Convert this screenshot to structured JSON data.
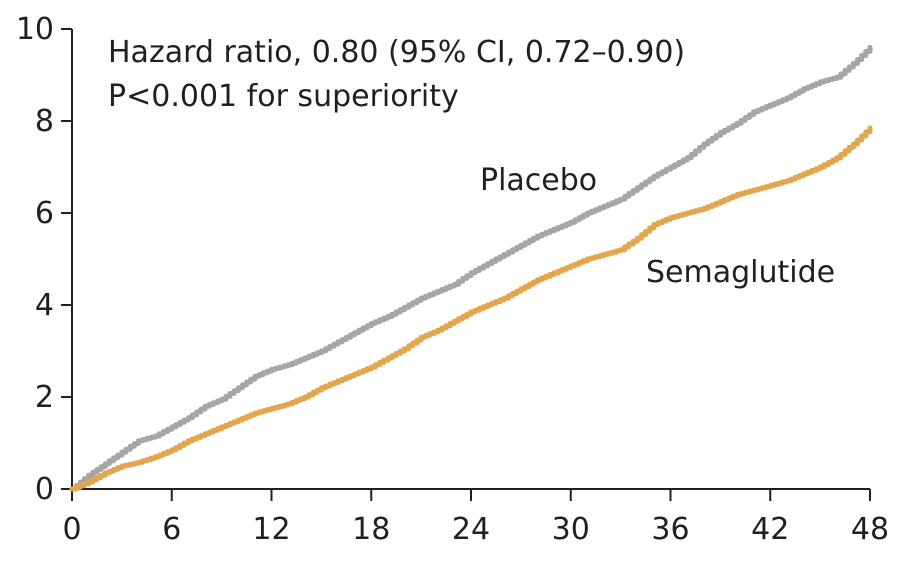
{
  "chart_data": {
    "type": "line",
    "title": "",
    "xlabel": "",
    "ylabel": "",
    "xlim": [
      0,
      48
    ],
    "ylim": [
      0,
      10
    ],
    "xticks": [
      0,
      6,
      12,
      18,
      24,
      30,
      36,
      42,
      48
    ],
    "yticks": [
      0,
      2,
      4,
      6,
      8,
      10
    ],
    "grid": false,
    "legend": "inline labels",
    "annotations": {
      "line1": "Hazard ratio, 0.80 (95% CI, 0.72–0.90)",
      "line2": "P<0.001 for superiority"
    },
    "series": [
      {
        "name": "Placebo",
        "color": "#a7a5a8",
        "x": [
          0,
          1,
          2,
          3,
          4,
          5,
          6,
          7,
          8,
          9,
          10,
          11,
          12,
          13,
          14,
          15,
          16,
          17,
          18,
          19,
          20,
          21,
          22,
          23,
          24,
          25,
          26,
          27,
          28,
          29,
          30,
          31,
          32,
          33,
          34,
          35,
          36,
          37,
          38,
          39,
          40,
          41,
          42,
          43,
          44,
          45,
          46,
          47,
          48
        ],
        "values": [
          0,
          0.3,
          0.55,
          0.8,
          1.05,
          1.15,
          1.35,
          1.55,
          1.8,
          1.95,
          2.2,
          2.45,
          2.6,
          2.7,
          2.85,
          3.0,
          3.2,
          3.4,
          3.6,
          3.75,
          3.95,
          4.15,
          4.3,
          4.45,
          4.7,
          4.9,
          5.1,
          5.3,
          5.5,
          5.65,
          5.8,
          6.0,
          6.15,
          6.3,
          6.55,
          6.8,
          7.0,
          7.2,
          7.5,
          7.75,
          7.95,
          8.2,
          8.35,
          8.5,
          8.7,
          8.85,
          8.95,
          9.25,
          9.6
        ]
      },
      {
        "name": "Semaglutide",
        "color": "#e3a64e",
        "x": [
          0,
          1,
          2,
          3,
          4,
          5,
          6,
          7,
          8,
          9,
          10,
          11,
          12,
          13,
          14,
          15,
          16,
          17,
          18,
          19,
          20,
          21,
          22,
          23,
          24,
          25,
          26,
          27,
          28,
          29,
          30,
          31,
          32,
          33,
          34,
          35,
          36,
          37,
          38,
          39,
          40,
          41,
          42,
          43,
          44,
          45,
          46,
          47,
          48
        ],
        "values": [
          0,
          0.15,
          0.35,
          0.5,
          0.58,
          0.7,
          0.85,
          1.05,
          1.2,
          1.35,
          1.5,
          1.65,
          1.75,
          1.85,
          2.0,
          2.2,
          2.35,
          2.5,
          2.65,
          2.85,
          3.05,
          3.3,
          3.45,
          3.65,
          3.85,
          4.0,
          4.15,
          4.35,
          4.55,
          4.7,
          4.85,
          5.0,
          5.1,
          5.2,
          5.45,
          5.75,
          5.9,
          6.0,
          6.1,
          6.25,
          6.4,
          6.5,
          6.6,
          6.7,
          6.85,
          7.0,
          7.2,
          7.5,
          7.85
        ]
      }
    ]
  }
}
